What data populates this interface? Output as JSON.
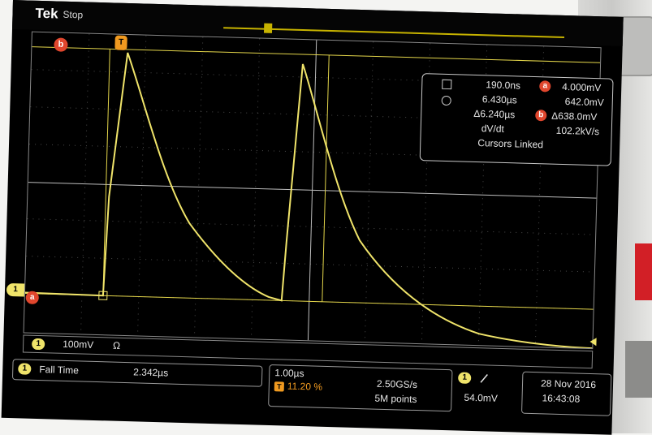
{
  "topbar": {
    "brand": "Tek",
    "run_state": "Stop"
  },
  "markers": {
    "cursor_b": "b",
    "cursor_a": "a",
    "trigger": "T",
    "channel": "1"
  },
  "cursor_readout": {
    "horiz_a": "190.0ns",
    "horiz_b": "6.430µs",
    "horiz_delta": "Δ6.240µs",
    "dvdt_label": "dV/dt",
    "vert_a": "4.000mV",
    "vert_b": "642.0mV",
    "vert_delta": "Δ638.0mV",
    "dvdt_value": "102.2kV/s",
    "linked": "Cursors Linked",
    "badge_a": "a",
    "badge_b": "b"
  },
  "channel_scale": {
    "channel": "1",
    "volts_div": "100mV",
    "coupling_icon": "Ω"
  },
  "measurement": {
    "channel": "1",
    "name": "Fall Time",
    "value": "2.342µs"
  },
  "horizontal": {
    "time_div": "1.00µs",
    "trigger_badge": "T",
    "trigger_pos": "11.20 %",
    "sample_rate": "2.50GS/s",
    "record_length": "5M points"
  },
  "trigger": {
    "channel": "1",
    "slope_icon": "rising-edge",
    "level": "54.0mV"
  },
  "datetime": {
    "date": "28 Nov 2016",
    "time": "16:43:08"
  },
  "colors": {
    "trace": "#f0e46a",
    "cursor_badge": "#e0462d",
    "trigger_badge": "#f09a20",
    "screen": "#000000"
  }
}
